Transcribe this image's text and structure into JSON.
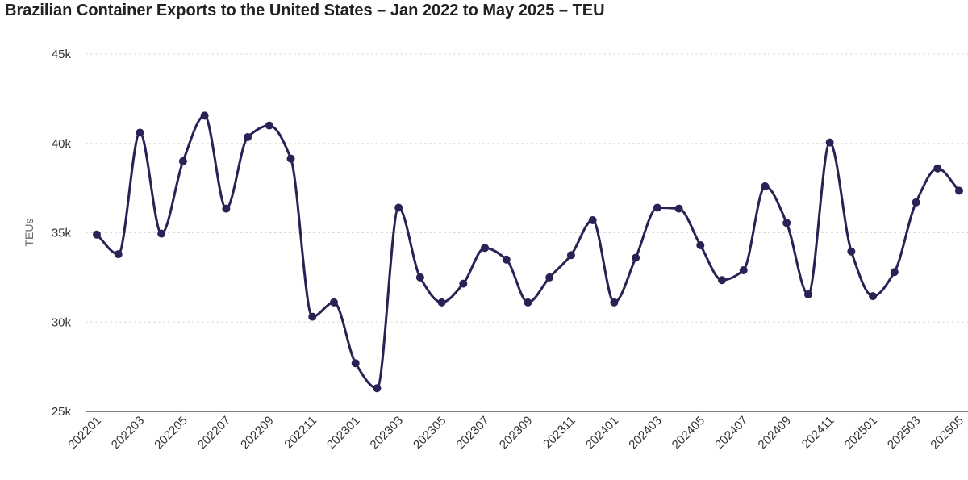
{
  "chart_data": {
    "type": "line",
    "title": "Brazilian Container Exports to the United States – Jan 2022 to May 2025 – TEU",
    "xlabel": "",
    "ylabel": "TEUs",
    "ylim": [
      25000,
      45000
    ],
    "yticks": [
      {
        "value": 25000,
        "label": "25k"
      },
      {
        "value": 30000,
        "label": "30k"
      },
      {
        "value": 35000,
        "label": "35k"
      },
      {
        "value": 40000,
        "label": "40k"
      },
      {
        "value": 45000,
        "label": "45k"
      }
    ],
    "xtick_labels": [
      "202201",
      "202203",
      "202205",
      "202207",
      "202209",
      "202211",
      "202301",
      "202303",
      "202305",
      "202307",
      "202309",
      "202311",
      "202401",
      "202403",
      "202405",
      "202407",
      "202409",
      "202411",
      "202501",
      "202503",
      "202505"
    ],
    "x": [
      "202201",
      "202202",
      "202203",
      "202204",
      "202205",
      "202206",
      "202207",
      "202208",
      "202209",
      "202210",
      "202211",
      "202212",
      "202301",
      "202302",
      "202303",
      "202304",
      "202305",
      "202306",
      "202307",
      "202308",
      "202309",
      "202310",
      "202311",
      "202312",
      "202401",
      "202402",
      "202403",
      "202404",
      "202405",
      "202406",
      "202407",
      "202408",
      "202409",
      "202410",
      "202411",
      "202412",
      "202501",
      "202502",
      "202503",
      "202504",
      "202505"
    ],
    "series": [
      {
        "values": [
          34900,
          33800,
          40600,
          34950,
          39000,
          41550,
          36350,
          40350,
          41000,
          39150,
          30300,
          31100,
          27700,
          26300,
          36400,
          32500,
          31100,
          32150,
          34150,
          33500,
          31100,
          32500,
          33750,
          35700,
          31100,
          33600,
          36400,
          36350,
          34300,
          32350,
          32900,
          37600,
          35550,
          31550,
          40050,
          33950,
          31450,
          32800,
          36700,
          38600,
          37350
        ],
        "color": "#2a2255"
      }
    ],
    "grid": true,
    "legend": "none"
  }
}
